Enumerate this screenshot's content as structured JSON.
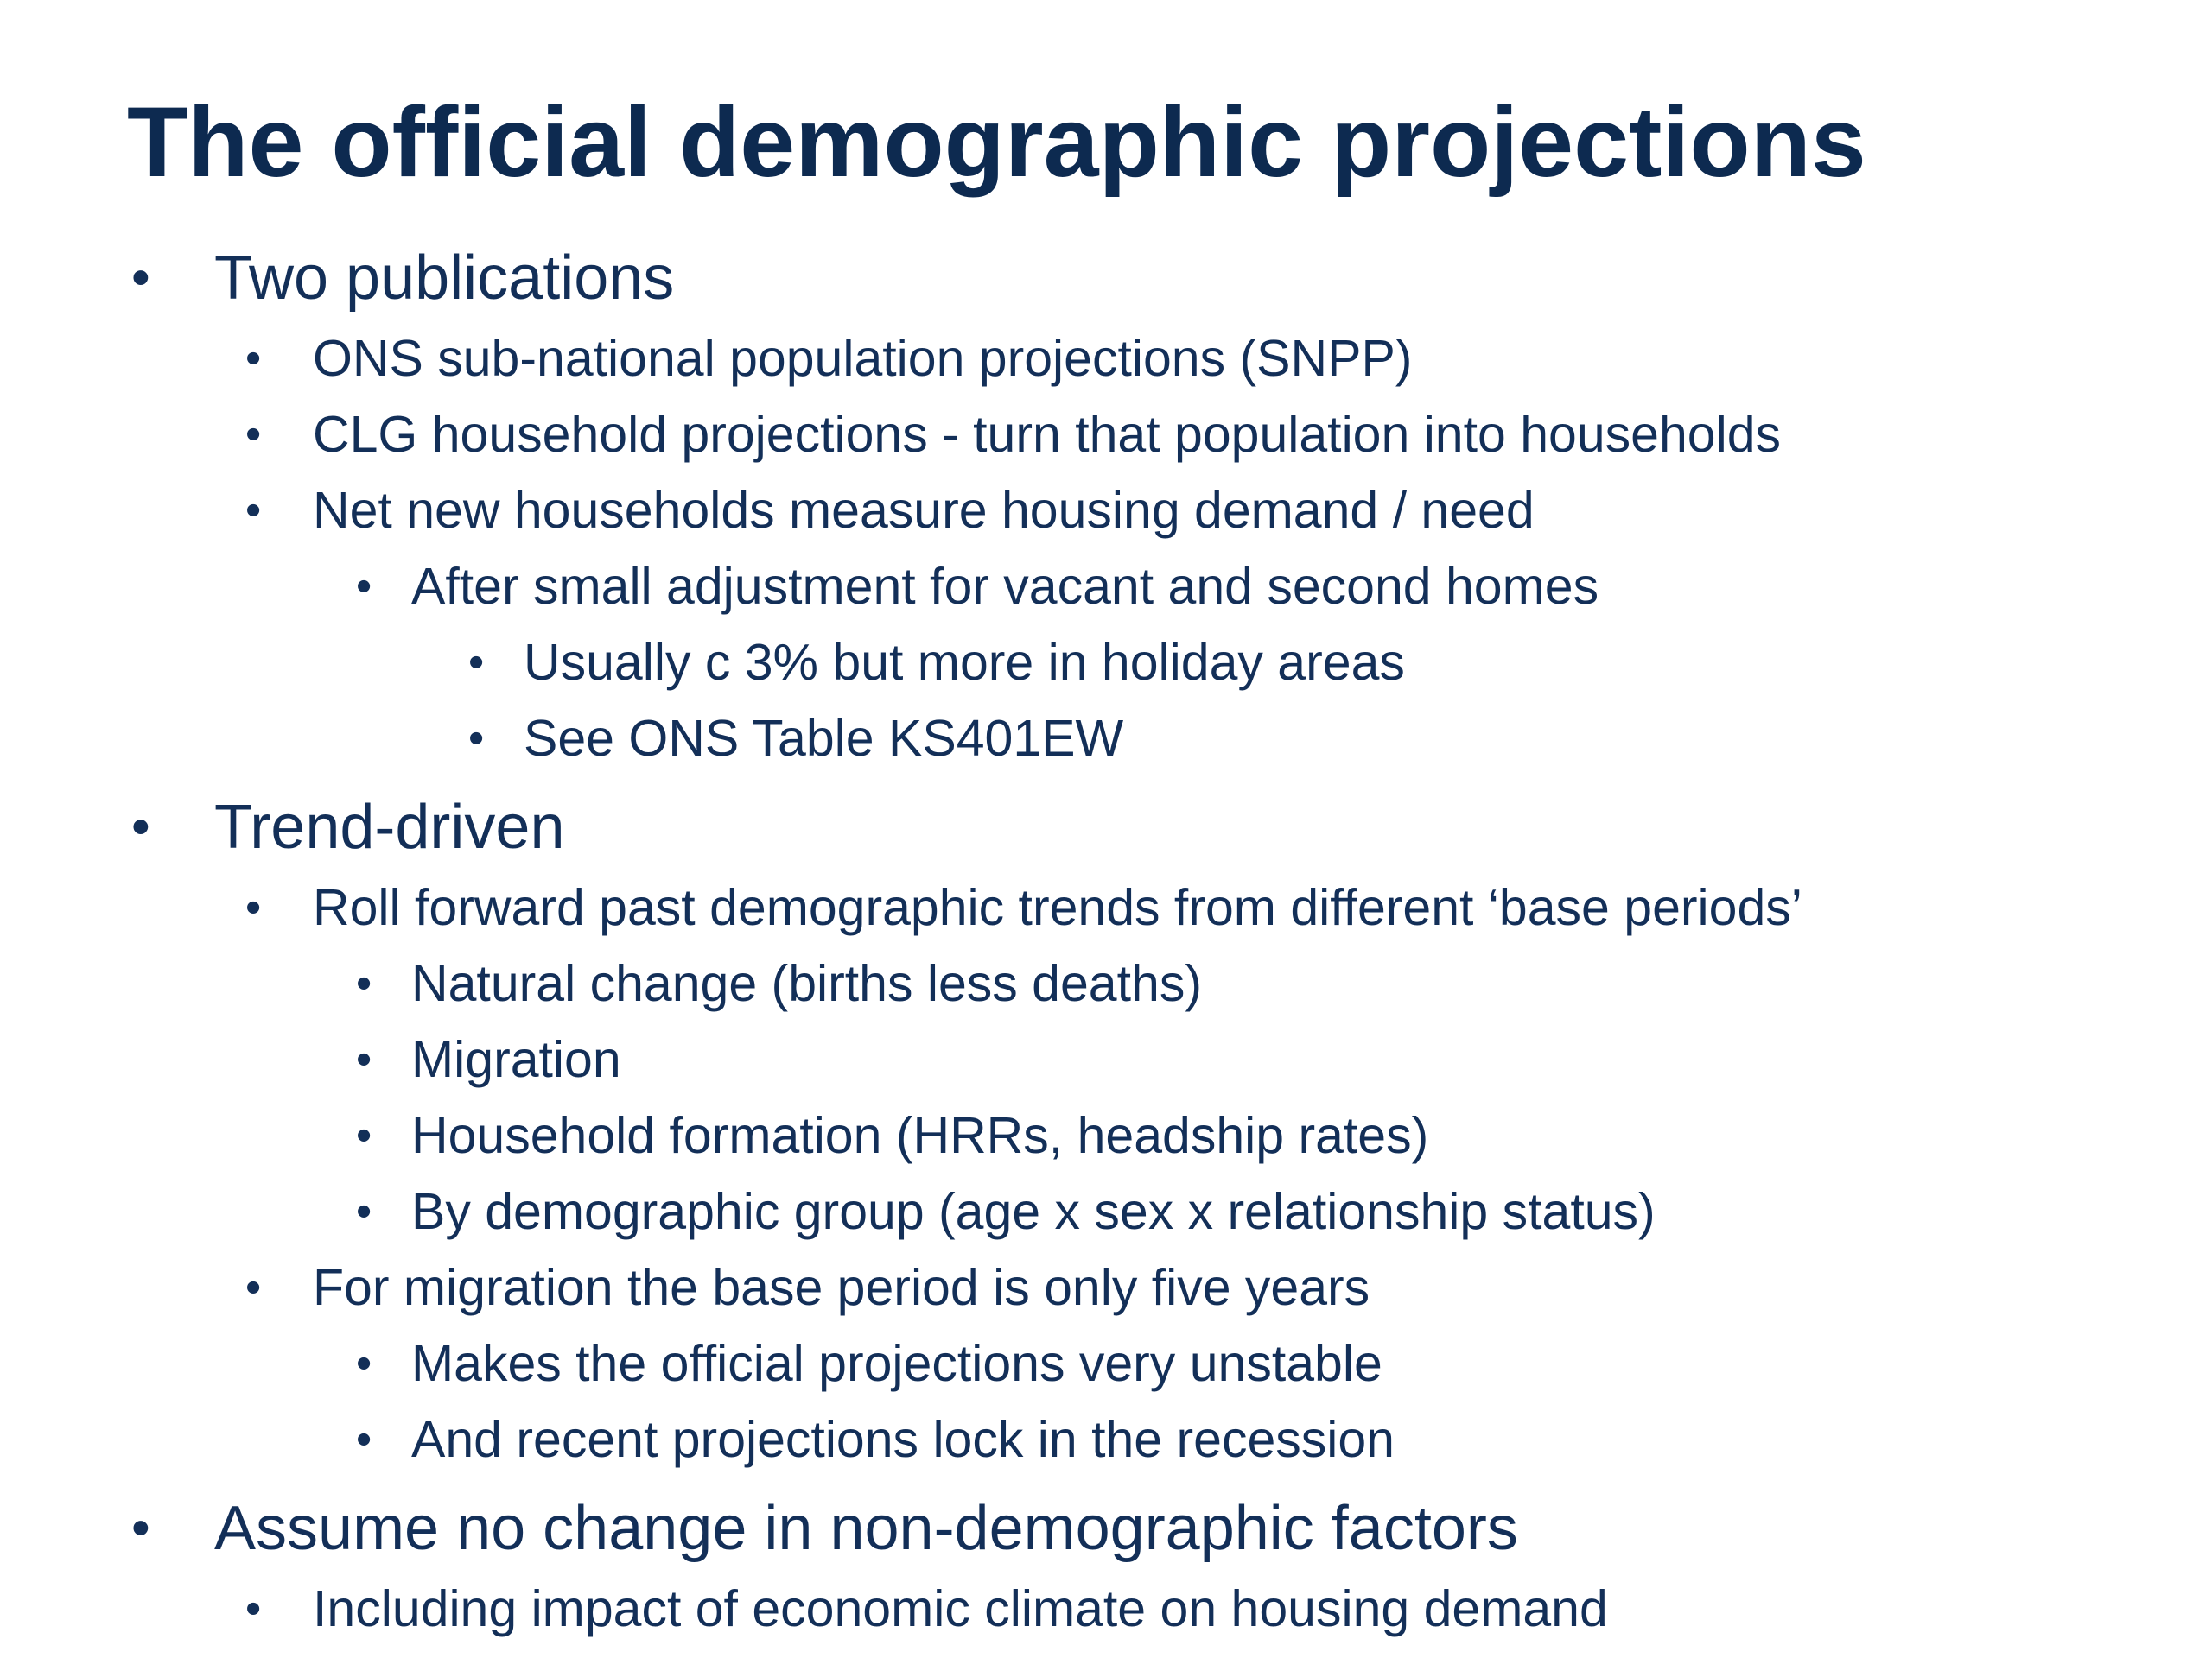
{
  "slide": {
    "title": "The official demographic projections",
    "bullet_glyph": "•",
    "sections": [
      {
        "heading": "Two publications",
        "items": [
          "ONS sub-national population projections (SNPP)",
          "CLG household projections - turn that population into households",
          "Net new households measure housing demand / need",
          "After small adjustment for vacant and second homes",
          "Usually c 3% but more in holiday areas",
          "See ONS Table KS401EW"
        ]
      },
      {
        "heading": "Trend-driven",
        "items": [
          "Roll forward past demographic trends from different ‘base periods’",
          "Natural change (births less deaths)",
          "Migration",
          "Household formation (HRRs, headship rates)",
          "By demographic group (age x sex x relationship status)",
          "For migration the base period is only five years",
          "Makes the official projections very unstable",
          "And recent projections lock in the recession"
        ]
      },
      {
        "heading": "Assume no change in non-demographic factors",
        "items": [
          "Including impact of economic climate on housing demand"
        ]
      }
    ]
  }
}
